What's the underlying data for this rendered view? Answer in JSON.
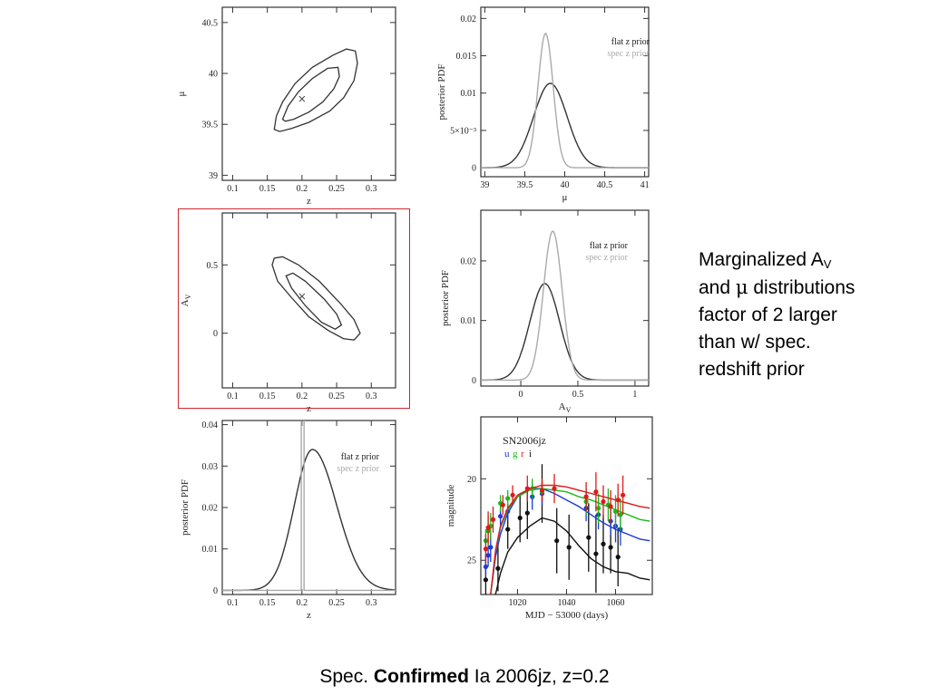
{
  "side_note": {
    "line1_prefix": "Marginalized A",
    "line1_sub": "V",
    "line2_prefix": "and ",
    "line2_mu": "μ",
    "line2_suffix": " distributions",
    "line3": "factor of 2 larger",
    "line4": "than w/ spec.",
    "line5": "redshift prior"
  },
  "caption": {
    "part1": "Spec. ",
    "bold": "Confirmed",
    "part2": " Ia 2006jz, z=0.2"
  },
  "colors": {
    "flat": "#333333",
    "spec": "#aaaaaa",
    "u": "#1a3ad8",
    "g": "#18b818",
    "r": "#e01818",
    "i": "#111111",
    "highlight": "#d0262c"
  },
  "chart_data": [
    {
      "id": "z-mu",
      "type": "contour",
      "xlabel": "z",
      "ylabel": "μ",
      "xlim": [
        0.085,
        0.335
      ],
      "ylim": [
        38.95,
        40.65
      ],
      "xticks": [
        0.1,
        0.15,
        0.2,
        0.25,
        0.3
      ],
      "yticks": [
        39,
        39.5,
        40,
        40.5
      ],
      "xticklabels": [
        "0.1",
        "0.15",
        "0.2",
        "0.25",
        "0.3"
      ],
      "yticklabels": [
        "39",
        "39.5",
        "40",
        "40.5"
      ],
      "best_fit": [
        0.2,
        39.75
      ],
      "contours": [
        [
          [
            0.16,
            39.45
          ],
          [
            0.163,
            39.58
          ],
          [
            0.172,
            39.72
          ],
          [
            0.19,
            39.9
          ],
          [
            0.215,
            40.06
          ],
          [
            0.245,
            40.18
          ],
          [
            0.264,
            40.24
          ],
          [
            0.277,
            40.22
          ],
          [
            0.28,
            40.1
          ],
          [
            0.275,
            39.93
          ],
          [
            0.26,
            39.76
          ],
          [
            0.24,
            39.63
          ],
          [
            0.21,
            39.52
          ],
          [
            0.185,
            39.46
          ],
          [
            0.168,
            39.43
          ],
          [
            0.16,
            39.45
          ]
        ],
        [
          [
            0.172,
            39.55
          ],
          [
            0.18,
            39.68
          ],
          [
            0.195,
            39.82
          ],
          [
            0.215,
            39.95
          ],
          [
            0.237,
            40.05
          ],
          [
            0.252,
            40.06
          ],
          [
            0.254,
            39.97
          ],
          [
            0.246,
            39.85
          ],
          [
            0.23,
            39.72
          ],
          [
            0.21,
            39.62
          ],
          [
            0.188,
            39.55
          ],
          [
            0.176,
            39.53
          ],
          [
            0.172,
            39.55
          ]
        ]
      ]
    },
    {
      "id": "mu-pdf",
      "type": "line",
      "xlabel": "μ",
      "ylabel": "posterior PDF",
      "xlim": [
        38.95,
        41.05
      ],
      "ylim": [
        -0.0012,
        0.0215
      ],
      "xticks": [
        39,
        39.5,
        40,
        40.5,
        41
      ],
      "xticklabels": [
        "39",
        "39.5",
        "40",
        "40.5",
        "41"
      ],
      "yticks": [
        0,
        0.005,
        0.01,
        0.015,
        0.02
      ],
      "yticklabels": [
        "0",
        "5×10⁻³",
        "0.01",
        "0.015",
        "0.02"
      ],
      "legend": [
        "flat z prior",
        "spec z prior"
      ],
      "series": [
        {
          "name": "flat z prior",
          "kind": "gauss",
          "mu": 39.82,
          "sigma": 0.21,
          "amp": 0.0113
        },
        {
          "name": "spec z prior",
          "kind": "gauss",
          "mu": 39.76,
          "sigma": 0.095,
          "amp": 0.018
        }
      ]
    },
    {
      "id": "z-av",
      "type": "contour",
      "xlabel": "z",
      "ylabel": "A_V",
      "xlim": [
        0.085,
        0.335
      ],
      "ylim": [
        -0.4,
        0.88
      ],
      "xticks": [
        0.1,
        0.15,
        0.2,
        0.25,
        0.3
      ],
      "yticks": [
        0,
        0.5
      ],
      "xticklabels": [
        "0.1",
        "0.15",
        "0.2",
        "0.25",
        "0.3"
      ],
      "yticklabels": [
        "0",
        "0.5"
      ],
      "best_fit": [
        0.2,
        0.27
      ],
      "contours": [
        [
          [
            0.157,
            0.5
          ],
          [
            0.165,
            0.38
          ],
          [
            0.185,
            0.26
          ],
          [
            0.21,
            0.12
          ],
          [
            0.238,
            0.02
          ],
          [
            0.26,
            -0.04
          ],
          [
            0.275,
            -0.05
          ],
          [
            0.284,
            0.0
          ],
          [
            0.275,
            0.1
          ],
          [
            0.255,
            0.22
          ],
          [
            0.225,
            0.38
          ],
          [
            0.195,
            0.5
          ],
          [
            0.172,
            0.56
          ],
          [
            0.16,
            0.55
          ],
          [
            0.157,
            0.5
          ]
        ],
        [
          [
            0.177,
            0.42
          ],
          [
            0.185,
            0.33
          ],
          [
            0.205,
            0.2
          ],
          [
            0.228,
            0.08
          ],
          [
            0.248,
            0.03
          ],
          [
            0.257,
            0.06
          ],
          [
            0.25,
            0.14
          ],
          [
            0.232,
            0.25
          ],
          [
            0.205,
            0.38
          ],
          [
            0.187,
            0.44
          ],
          [
            0.177,
            0.42
          ]
        ]
      ]
    },
    {
      "id": "av-pdf",
      "type": "line",
      "xlabel": "A_V",
      "ylabel": "posterior PDF",
      "xlim": [
        -0.35,
        1.12
      ],
      "ylim": [
        -0.001,
        0.0285
      ],
      "xticks": [
        0,
        0.5,
        1
      ],
      "xticklabels": [
        "0",
        "0.5",
        "1"
      ],
      "yticks": [
        0,
        0.01,
        0.02
      ],
      "yticklabels": [
        "0",
        "0.01",
        "0.02"
      ],
      "legend": [
        "flat z prior",
        "spec z prior"
      ],
      "series": [
        {
          "name": "flat z prior",
          "kind": "gauss",
          "mu": 0.21,
          "sigma": 0.13,
          "amp": 0.0162
        },
        {
          "name": "spec z prior",
          "kind": "gauss",
          "mu": 0.28,
          "sigma": 0.082,
          "amp": 0.025
        }
      ]
    },
    {
      "id": "z-pdf",
      "type": "line",
      "xlabel": "z",
      "ylabel": "posterior PDF",
      "xlim": [
        0.085,
        0.335
      ],
      "ylim": [
        -0.001,
        0.041
      ],
      "xticks": [
        0.1,
        0.15,
        0.2,
        0.25,
        0.3
      ],
      "xticklabels": [
        "0.1",
        "0.15",
        "0.2",
        "0.25",
        "0.3"
      ],
      "yticks": [
        0,
        0.01,
        0.02,
        0.03,
        0.04
      ],
      "yticklabels": [
        "0",
        "0.01",
        "0.02",
        "0.03",
        "0.04"
      ],
      "legend": [
        "flat z prior",
        "spec z prior"
      ],
      "series": [
        {
          "name": "flat z prior",
          "kind": "gauss2",
          "mu": 0.215,
          "sigma_left": 0.026,
          "sigma_right": 0.035,
          "amp": 0.034
        },
        {
          "name": "spec z prior",
          "kind": "spike",
          "x0": 0.199,
          "x1": 0.203,
          "height": 0.041
        }
      ]
    },
    {
      "id": "lightcurve",
      "type": "scatter",
      "title": "SN2006jz",
      "xlabel": "MJD − 53000 (days)",
      "ylabel": "magnitude",
      "xlim": [
        1005,
        1075
      ],
      "ylim": [
        27.1,
        16.2
      ],
      "xticks": [
        1020,
        1040,
        1060
      ],
      "xticklabels": [
        "1020",
        "1040",
        "1060"
      ],
      "yticks": [
        20,
        25
      ],
      "yticklabels": [
        "20",
        "25"
      ],
      "bands": [
        "u",
        "g",
        "r",
        "i"
      ],
      "series": [
        {
          "name": "u",
          "points": [
            [
              1007,
              25.4,
              0.6
            ],
            [
              1008,
              24.7,
              0.7
            ],
            [
              1009,
              24.2,
              0.9
            ],
            [
              1013,
              22.3,
              0.6
            ],
            [
              1016,
              22.0,
              0.5
            ],
            [
              1026,
              21.1,
              0.8
            ],
            [
              1030,
              20.9,
              0.7
            ],
            [
              1048,
              21.8,
              0.8
            ],
            [
              1053,
              22.2,
              0.9
            ],
            [
              1058,
              22.6,
              0.9
            ],
            [
              1060,
              22.9,
              1.0
            ],
            [
              1062,
              23.1,
              1.0
            ]
          ],
          "model": [
            [
              1009,
              27.1
            ],
            [
              1011,
              24.8
            ],
            [
              1013,
              23.4
            ],
            [
              1016,
              22.1
            ],
            [
              1020,
              21.1
            ],
            [
              1025,
              20.6
            ],
            [
              1030,
              20.6
            ],
            [
              1035,
              20.9
            ],
            [
              1040,
              21.3
            ],
            [
              1045,
              21.7
            ],
            [
              1050,
              22.2
            ],
            [
              1055,
              22.7
            ],
            [
              1060,
              23.1
            ],
            [
              1065,
              23.4
            ],
            [
              1070,
              23.7
            ],
            [
              1074,
              23.8
            ]
          ]
        },
        {
          "name": "g",
          "points": [
            [
              1007,
              23.8,
              0.7
            ],
            [
              1008,
              23.2,
              0.9
            ],
            [
              1009,
              22.9,
              0.8
            ],
            [
              1013,
              21.5,
              0.5
            ],
            [
              1016,
              21.2,
              0.5
            ],
            [
              1026,
              20.6,
              0.6
            ],
            [
              1030,
              20.8,
              0.6
            ],
            [
              1048,
              21.4,
              0.8
            ],
            [
              1053,
              21.8,
              0.9
            ],
            [
              1057,
              21.6,
              1.0
            ],
            [
              1060,
              22.0,
              1.0
            ],
            [
              1062,
              22.2,
              1.0
            ]
          ],
          "model": [
            [
              1009,
              27.1
            ],
            [
              1011,
              24.5
            ],
            [
              1013,
              23.0
            ],
            [
              1016,
              21.9
            ],
            [
              1020,
              21.1
            ],
            [
              1025,
              20.7
            ],
            [
              1030,
              20.6
            ],
            [
              1035,
              20.7
            ],
            [
              1040,
              20.8
            ],
            [
              1045,
              21.1
            ],
            [
              1050,
              21.3
            ],
            [
              1055,
              21.6
            ],
            [
              1060,
              21.9
            ],
            [
              1065,
              22.2
            ],
            [
              1070,
              22.5
            ],
            [
              1074,
              22.6
            ]
          ]
        },
        {
          "name": "r",
          "points": [
            [
              1007,
              24.3,
              0.9
            ],
            [
              1008,
              23.0,
              1.0
            ],
            [
              1010,
              22.5,
              0.8
            ],
            [
              1014,
              21.6,
              0.6
            ],
            [
              1018,
              21.0,
              0.6
            ],
            [
              1024,
              20.6,
              0.8
            ],
            [
              1030,
              20.7,
              0.7
            ],
            [
              1035,
              20.6,
              0.9
            ],
            [
              1048,
              21.1,
              0.9
            ],
            [
              1052,
              20.8,
              1.2
            ],
            [
              1055,
              21.4,
              1.0
            ],
            [
              1058,
              21.7,
              1.0
            ],
            [
              1061,
              21.3,
              1.0
            ],
            [
              1063,
              21.0,
              1.2
            ]
          ],
          "model": [
            [
              1009,
              27.1
            ],
            [
              1011,
              24.4
            ],
            [
              1013,
              22.9
            ],
            [
              1016,
              21.8
            ],
            [
              1020,
              21.0
            ],
            [
              1025,
              20.6
            ],
            [
              1030,
              20.4
            ],
            [
              1035,
              20.4
            ],
            [
              1040,
              20.5
            ],
            [
              1045,
              20.7
            ],
            [
              1050,
              20.9
            ],
            [
              1055,
              21.1
            ],
            [
              1060,
              21.3
            ],
            [
              1065,
              21.5
            ],
            [
              1070,
              21.7
            ],
            [
              1074,
              21.8
            ]
          ]
        },
        {
          "name": "i",
          "points": [
            [
              1007,
              26.2,
              1.6
            ],
            [
              1012,
              25.5,
              1.4
            ],
            [
              1016,
              23.1,
              1.2
            ],
            [
              1021,
              22.4,
              1.5
            ],
            [
              1024,
              22.1,
              1.6
            ],
            [
              1030,
              20.9,
              1.8
            ],
            [
              1036,
              23.8,
              2.0
            ],
            [
              1041,
              24.2,
              2.0
            ],
            [
              1049,
              23.6,
              2.1
            ],
            [
              1052,
              24.6,
              2.4
            ],
            [
              1055,
              24.0,
              1.8
            ],
            [
              1058,
              24.2,
              1.6
            ],
            [
              1061,
              24.8,
              1.8
            ]
          ],
          "model": [
            [
              1011,
              27.1
            ],
            [
              1013,
              25.8
            ],
            [
              1016,
              24.5
            ],
            [
              1020,
              23.6
            ],
            [
              1025,
              22.9
            ],
            [
              1030,
              22.4
            ],
            [
              1035,
              22.6
            ],
            [
              1040,
              23.2
            ],
            [
              1045,
              24.1
            ],
            [
              1050,
              24.9
            ],
            [
              1055,
              25.4
            ],
            [
              1060,
              25.7
            ],
            [
              1065,
              25.8
            ],
            [
              1070,
              26.1
            ],
            [
              1074,
              26.2
            ]
          ]
        }
      ]
    }
  ]
}
